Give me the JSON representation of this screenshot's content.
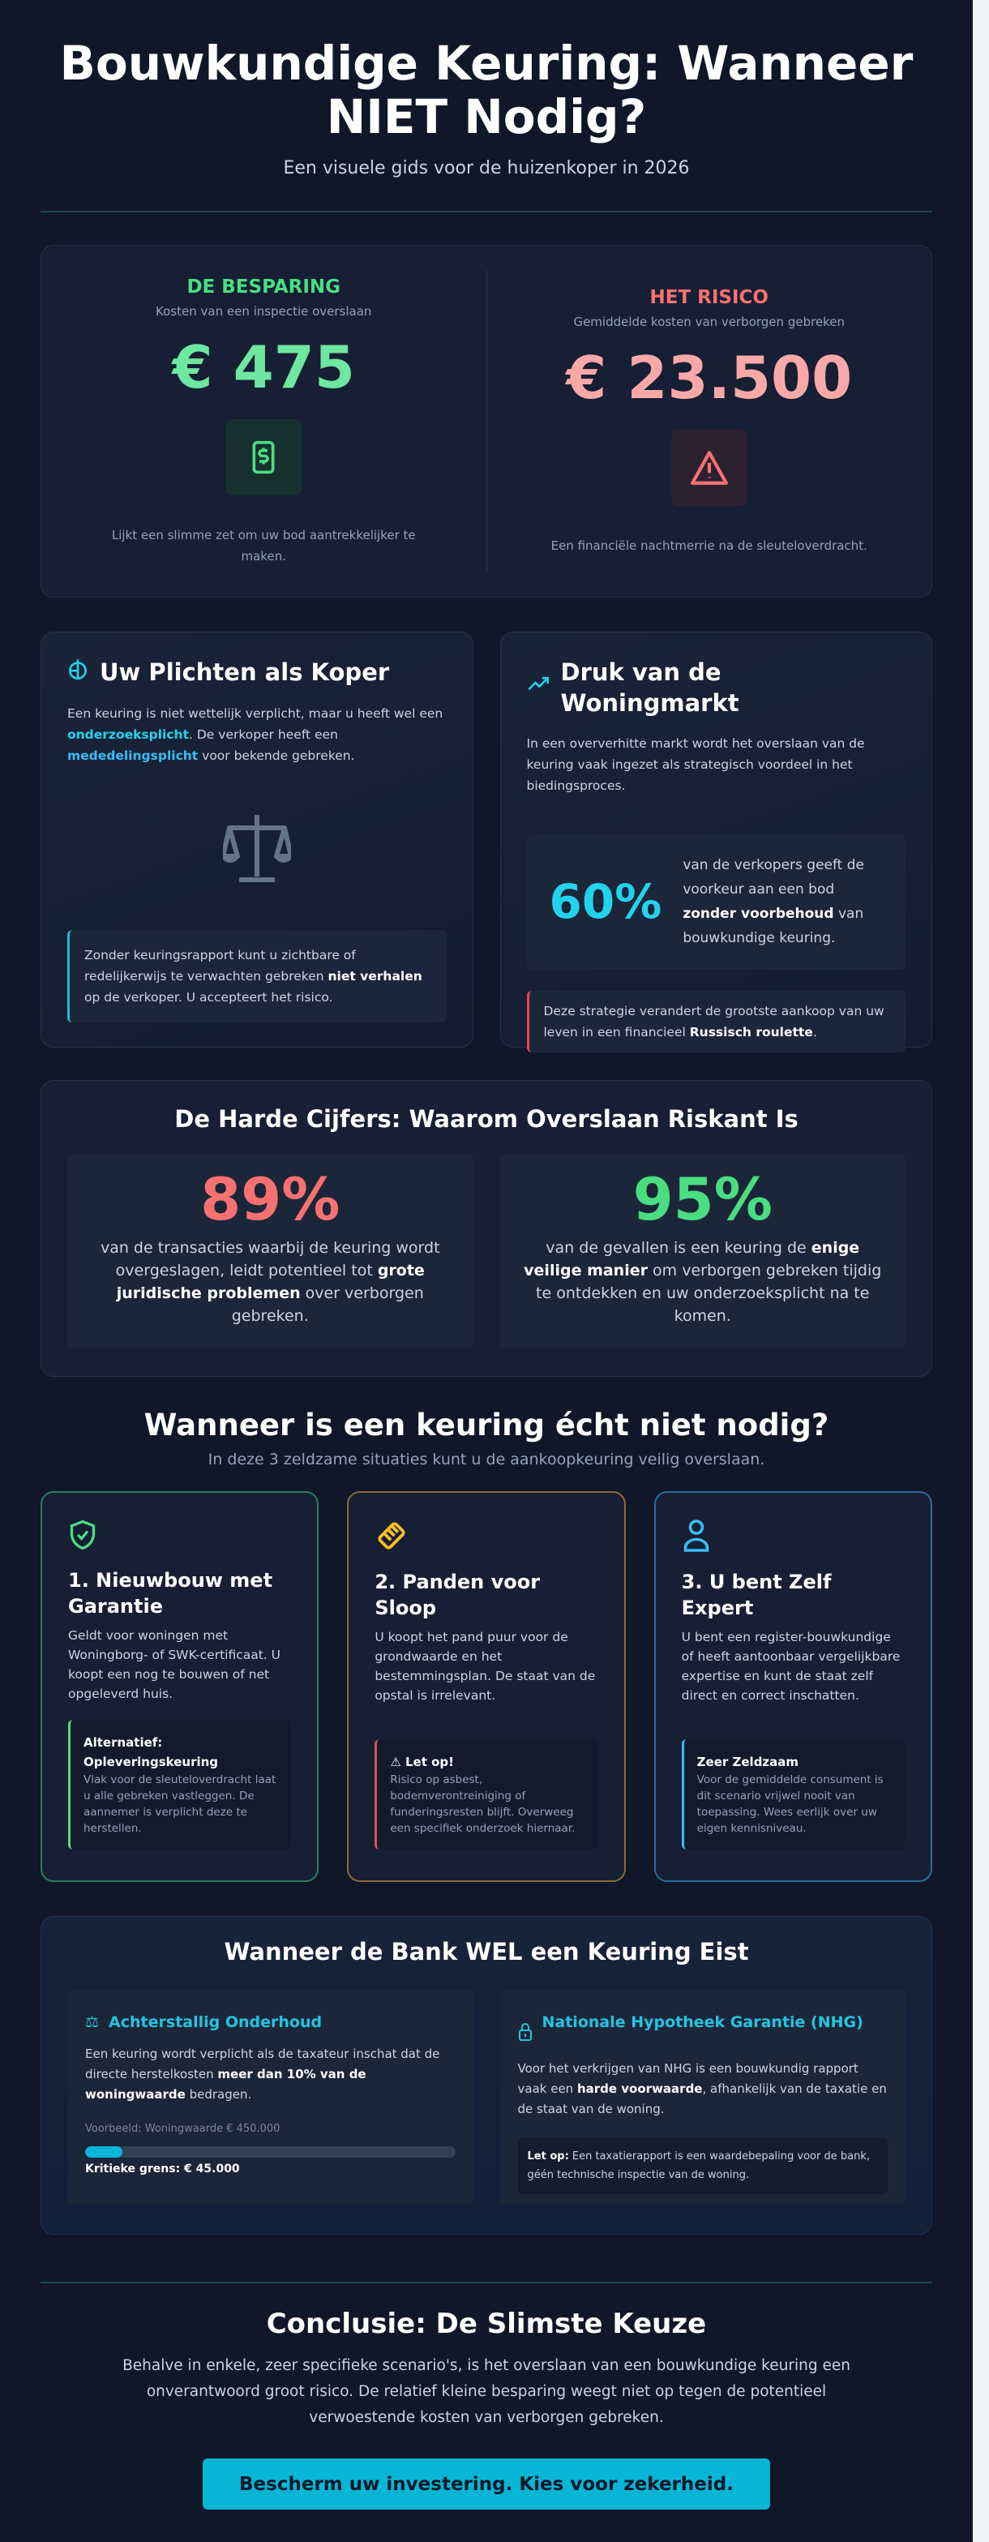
{
  "header": {
    "title": "Bouwkundige Keuring: Wanneer NIET Nodig?",
    "subtitle": "Een visuele gids voor de huizenkoper in 2026"
  },
  "hero": {
    "saving": {
      "label": "DE BESPARING",
      "sublabel": "Kosten van een inspectie overslaan",
      "amount": "€ 475",
      "note": "Lijkt een slimme zet om uw bod aantrekkelijker te maken.",
      "icon": "money-icon",
      "color": "#4ade80"
    },
    "risk": {
      "label": "HET RISICO",
      "sublabel": "Gemiddelde kosten van verborgen gebreken",
      "amount": "€ 23.500",
      "note": "Een financiële nachtmerrie na de sleuteloverdracht.",
      "icon": "warning-icon",
      "color": "#f9a8a8"
    }
  },
  "duties": {
    "title": "Uw Plichten als Koper",
    "p1": "Een keuring is niet wettelijk verplicht, maar u heeft wel een ",
    "k1": "onderzoeksplicht",
    "p2": ". De verkoper heeft een ",
    "k2": "mededelingsplicht",
    "p3": " voor bekende gebreken.",
    "q1": "Zonder keuringsrapport kunt u zichtbare of redelijkerwijs te verwachten gebreken ",
    "qb": "niet verhalen",
    "q2": " op de verkoper. U accepteert het risico."
  },
  "market": {
    "title": "Druk van de Woningmarkt",
    "intro": "In een oververhitte markt wordt het overslaan van de keuring vaak ingezet als strategisch voordeel in het biedingsproces.",
    "stat": "60%",
    "s1": "van de verkopers geeft de voorkeur aan een bod ",
    "sb": "zonder voorbehoud",
    "s2": " van bouwkundige keuring.",
    "q1": "Deze strategie verandert de grootste aankoop van uw leven in een financieel ",
    "qb": "Russisch roulette",
    "q2": "."
  },
  "figures": {
    "title": "De Harde Cijfers: Waarom Overslaan Riskant Is",
    "a": {
      "num": "89%",
      "t1": "van de transacties waarbij de keuring wordt overgeslagen, leidt potentieel tot ",
      "tb": "grote juridische problemen",
      "t2": " over verborgen gebreken.",
      "color": "#f87171"
    },
    "b": {
      "num": "95%",
      "t1": "van de gevallen is een keuring de ",
      "tb": "enige veilige manier",
      "t2": " om verborgen gebreken tijdig te ontdekken en uw onderzoeksplicht na te komen.",
      "color": "#4ade80"
    }
  },
  "cases": {
    "title": "Wanneer is een keuring écht niet nodig?",
    "subtitle": "In deze 3 zeldzame situaties kunt u de aankoopkeuring veilig overslaan.",
    "items": [
      {
        "title": "1. Nieuwbouw met Garantie",
        "text": "Geldt voor woningen met Woningborg- of SWK-certificaat. U koopt een nog te bouwen of net opgeleverd huis.",
        "note_title": "Alternatief: Opleveringskeuring",
        "note": "Vlak voor de sleuteloverdracht laat u alle gebreken vastleggen. De aannemer is verplicht deze te herstellen.",
        "icon": "shield-check-icon",
        "color": "#4ade80"
      },
      {
        "title": "2. Panden voor Sloop",
        "text": "U koopt het pand puur voor de grondwaarde en het bestemmingsplan. De staat van de opstal is irrelevant.",
        "note_title": "⚠ Let op!",
        "note": "Risico op asbest, bodemverontreiniging of funderingsresten blijft. Overweeg een specifiek onderzoek hiernaar.",
        "icon": "demolition-icon",
        "color": "#fbbf24"
      },
      {
        "title": "3. U bent Zelf Expert",
        "text": "U bent een register-bouwkundige of heeft aantoonbaar vergelijkbare expertise en kunt de staat zelf direct en correct inschatten.",
        "note_title": "Zeer Zeldzaam",
        "note": "Voor de gemiddelde consument is dit scenario vrijwel nooit van toepassing. Wees eerlijk over uw eigen kennisniveau.",
        "icon": "user-icon",
        "color": "#38bdf8"
      }
    ]
  },
  "bank": {
    "title": "Wanneer de Bank WEL een Keuring Eist",
    "a": {
      "title": "Achterstallig Onderhoud",
      "t1": "Een keuring wordt verplicht als de taxateur inschat dat de directe herstelkosten ",
      "tb": "meer dan 10% van de woningwaarde",
      "t2": " bedragen.",
      "example": "Voorbeeld: Woningwaarde € 450.000",
      "progress": 0.1,
      "limit": "Kritieke grens: € 45.000"
    },
    "b": {
      "title": "Nationale Hypotheek Garantie (NHG)",
      "t1": "Voor het verkrijgen van NHG is een bouwkundig rapport vaak een ",
      "tb": "harde voorwaarde",
      "t2": ", afhankelijk van de taxatie en de staat van de woning.",
      "note_label": "Let op:",
      "note": " Een taxatierapport is een waardebepaling voor de bank, géén technische inspectie van de woning."
    }
  },
  "conclusion": {
    "title": "Conclusie: De Slimste Keuze",
    "text": "Behalve in enkele, zeer specifieke scenario's, is het overslaan van een bouwkundige keuring een onverantwoord groot risico. De relatief kleine besparing weegt niet op tegen de potentieel verwoestende kosten van verborgen gebreken.",
    "cta": "Bescherm uw investering. Kies voor zekerheid."
  }
}
